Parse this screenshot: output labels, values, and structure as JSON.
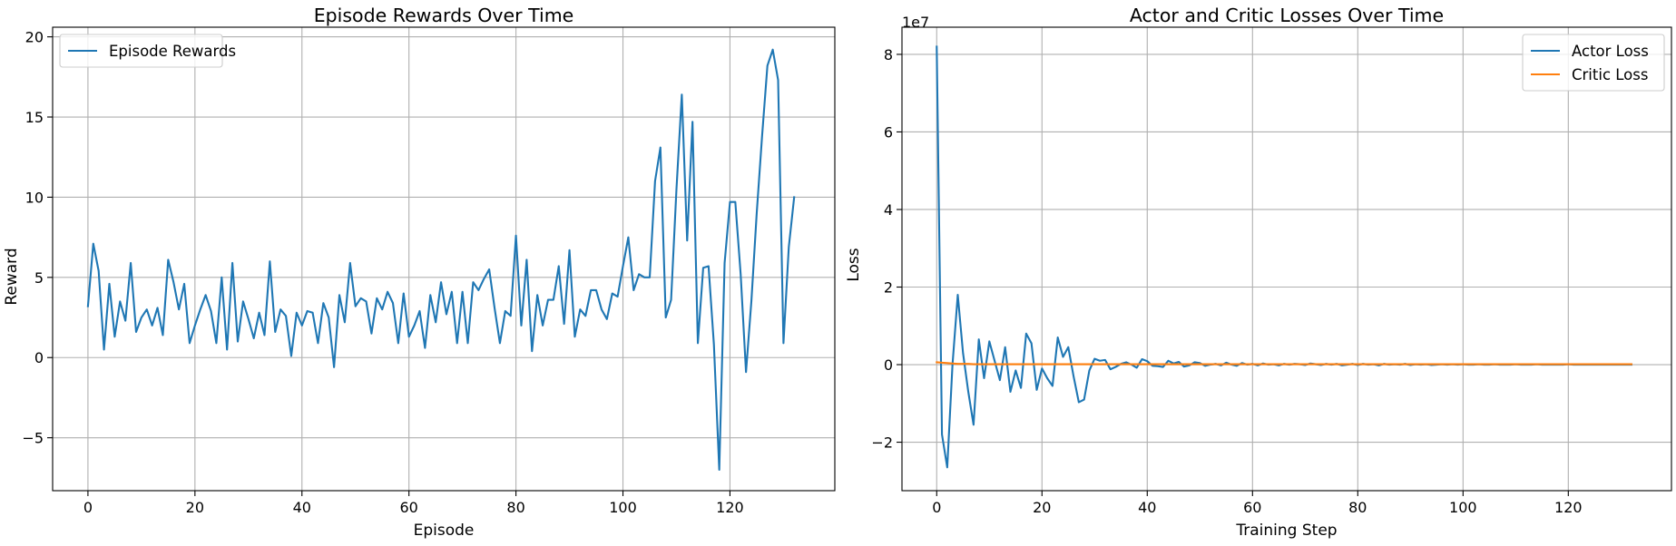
{
  "chart_data": [
    {
      "type": "line",
      "title": "Episode Rewards Over Time",
      "xlabel": "Episode",
      "ylabel": "Reward",
      "xlim": [
        -6.6,
        139.6
      ],
      "ylim": [
        -8.3,
        20.6
      ],
      "xticks": [
        0,
        20,
        40,
        60,
        80,
        100,
        120
      ],
      "yticks": [
        -5,
        0,
        5,
        10,
        15,
        20
      ],
      "grid": true,
      "legend": "upper left",
      "series": [
        {
          "name": "Episode Rewards",
          "color": "#1f77b4",
          "x_start": 0,
          "values": [
            3.2,
            7.1,
            5.4,
            0.5,
            4.6,
            1.3,
            3.5,
            2.3,
            5.9,
            1.6,
            2.5,
            3.0,
            2.0,
            3.1,
            1.4,
            6.1,
            4.7,
            3.0,
            4.6,
            0.9,
            2.0,
            3.0,
            3.9,
            2.9,
            0.9,
            5.0,
            0.5,
            5.9,
            1.0,
            3.5,
            2.4,
            1.2,
            2.8,
            1.4,
            6.0,
            1.6,
            3.0,
            2.6,
            0.1,
            2.8,
            2.0,
            2.9,
            2.8,
            0.9,
            3.4,
            2.5,
            -0.6,
            3.9,
            2.2,
            5.9,
            3.2,
            3.7,
            3.5,
            1.5,
            3.7,
            3.0,
            4.1,
            3.4,
            0.9,
            4.0,
            1.3,
            2.0,
            2.9,
            0.6,
            3.9,
            2.2,
            4.7,
            2.7,
            4.1,
            0.9,
            4.1,
            0.9,
            4.7,
            4.2,
            4.9,
            5.5,
            3.1,
            0.9,
            2.9,
            2.6,
            7.6,
            2.0,
            6.1,
            0.4,
            3.9,
            2.0,
            3.6,
            3.6,
            5.7,
            2.1,
            6.7,
            1.3,
            3.0,
            2.6,
            4.2,
            4.2,
            3.0,
            2.4,
            4.0,
            3.8,
            5.7,
            7.5,
            4.2,
            5.2,
            5.0,
            5.0,
            11.0,
            13.1,
            2.5,
            3.6,
            10.5,
            16.4,
            7.3,
            14.7,
            0.9,
            5.6,
            5.7,
            0.8,
            -7.0,
            5.9,
            9.7,
            9.7,
            5.2,
            -0.9,
            3.5,
            9.0,
            13.8,
            18.2,
            19.2,
            17.3,
            0.9,
            6.9,
            10.0
          ]
        }
      ]
    },
    {
      "type": "line",
      "title": "Actor and Critic Losses Over Time",
      "xlabel": "Training Step",
      "ylabel": "Loss",
      "scale_label": "1e7",
      "xlim": [
        -6.6,
        139.6
      ],
      "ylim": [
        -3.25,
        8.7
      ],
      "xticks": [
        0,
        20,
        40,
        60,
        80,
        100,
        120
      ],
      "yticks": [
        -2,
        0,
        2,
        4,
        6,
        8
      ],
      "grid": true,
      "legend": "upper right",
      "series": [
        {
          "name": "Actor Loss",
          "color": "#1f77b4",
          "x_start": 0,
          "values": [
            8.2,
            -1.8,
            -2.65,
            0.0,
            1.8,
            0.3,
            -0.7,
            -1.55,
            0.65,
            -0.35,
            0.6,
            0.1,
            -0.4,
            0.45,
            -0.7,
            -0.15,
            -0.6,
            0.8,
            0.55,
            -0.65,
            -0.1,
            -0.35,
            -0.55,
            0.7,
            0.2,
            0.45,
            -0.3,
            -0.97,
            -0.9,
            -0.15,
            0.15,
            0.1,
            0.12,
            -0.12,
            -0.06,
            0.02,
            0.06,
            0.0,
            -0.08,
            0.14,
            0.09,
            -0.03,
            -0.04,
            -0.06,
            0.1,
            0.03,
            0.07,
            -0.05,
            -0.02,
            0.06,
            0.04,
            -0.03,
            0.0,
            0.02,
            -0.02,
            0.05,
            0.0,
            -0.03,
            0.04,
            0.0,
            0.02,
            -0.02,
            0.03,
            0.0,
            0.01,
            -0.02,
            0.02,
            0.0,
            0.02,
            0.01,
            -0.01,
            0.03,
            0.01,
            -0.01,
            0.02,
            0.0,
            0.02,
            -0.02,
            0.0,
            0.02,
            -0.01,
            0.02,
            0.0,
            0.01,
            -0.02,
            0.02,
            0.0,
            0.01,
            0.0,
            0.02,
            -0.01,
            0.01,
            0.0,
            0.01,
            -0.01,
            0.0,
            0.01,
            0.0,
            0.01,
            0.0,
            0.01,
            0.0,
            0.0,
            0.01,
            0.0,
            0.0,
            0.01,
            0.0,
            0.0,
            0.0,
            0.01,
            0.0,
            0.0,
            0.0,
            0.01,
            0.0,
            0.0,
            0.0,
            0.0,
            0.0,
            0.01,
            0.0,
            0.0,
            0.0,
            0.0,
            0.0,
            0.0,
            0.0,
            0.0,
            0.0,
            0.0,
            0.0,
            0.0
          ]
        },
        {
          "name": "Critic Loss",
          "color": "#ff7f0e",
          "x_start": 0,
          "values": [
            0.06,
            0.05,
            0.04,
            0.03,
            0.02,
            0.02,
            0.02,
            0.01,
            0.01,
            0.01,
            0.01,
            0.01,
            0.01,
            0.01,
            0.01,
            0.01,
            0.01,
            0.01,
            0.01,
            0.01,
            0.01,
            0.01,
            0.01,
            0.01,
            0.01,
            0.01,
            0.01,
            0.01,
            0.01,
            0.01,
            0.01,
            0.01,
            0.01,
            0.01,
            0.01,
            0.01,
            0.01,
            0.01,
            0.01,
            0.01,
            0.01,
            0.01,
            0.01,
            0.01,
            0.01,
            0.01,
            0.01,
            0.01,
            0.01,
            0.01,
            0.01,
            0.01,
            0.01,
            0.01,
            0.01,
            0.01,
            0.01,
            0.01,
            0.01,
            0.01,
            0.01,
            0.01,
            0.01,
            0.01,
            0.01,
            0.01,
            0.01,
            0.01,
            0.01,
            0.01,
            0.01,
            0.01,
            0.01,
            0.01,
            0.01,
            0.01,
            0.01,
            0.01,
            0.01,
            0.01,
            0.01,
            0.01,
            0.01,
            0.01,
            0.01,
            0.01,
            0.01,
            0.01,
            0.01,
            0.01,
            0.01,
            0.01,
            0.01,
            0.01,
            0.01,
            0.01,
            0.01,
            0.01,
            0.01,
            0.01,
            0.01,
            0.01,
            0.01,
            0.01,
            0.01,
            0.01,
            0.01,
            0.01,
            0.01,
            0.01,
            0.01,
            0.01,
            0.01,
            0.01,
            0.01,
            0.01,
            0.01,
            0.01,
            0.01,
            0.01,
            0.01,
            0.01,
            0.01,
            0.01,
            0.01,
            0.01,
            0.01,
            0.01,
            0.01,
            0.01,
            0.01,
            0.01,
            0.01
          ]
        }
      ]
    }
  ]
}
